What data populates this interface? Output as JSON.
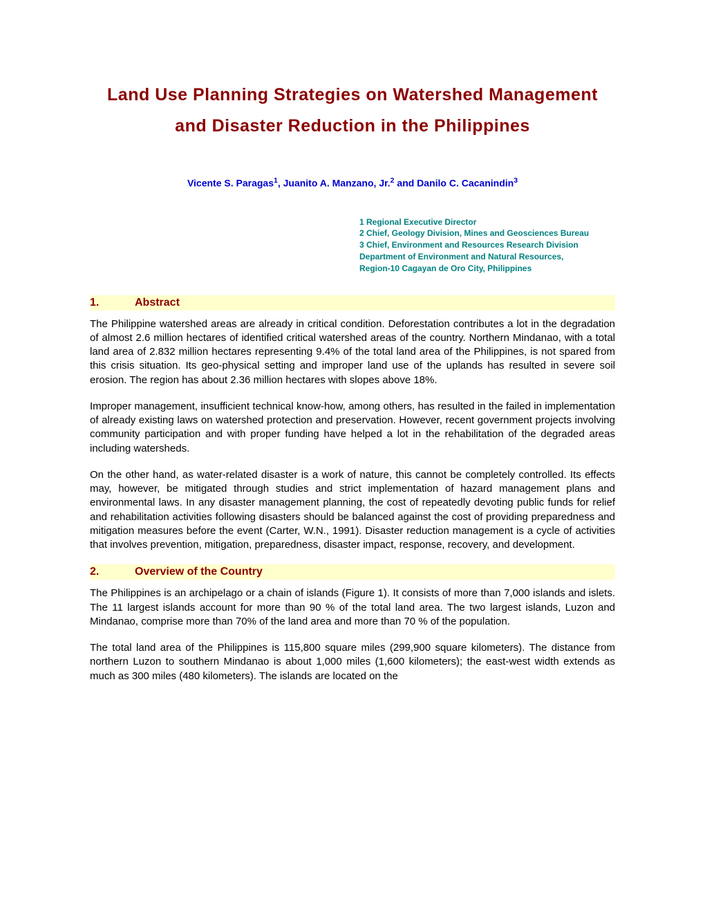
{
  "colors": {
    "title": "#8b0000",
    "author": "#0000cd",
    "affiliation": "#008080",
    "heading_bg": "#ffffcc",
    "heading_text": "#8b0000",
    "body_text": "#000000",
    "page_bg": "#ffffff"
  },
  "typography": {
    "title_fontsize": 25,
    "author_fontsize": 14,
    "affiliation_fontsize": 12,
    "heading_fontsize": 16,
    "body_fontsize": 15,
    "font_family": "Arial"
  },
  "title": "Land Use Planning Strategies on Watershed Management and Disaster Reduction in the Philippines",
  "authors_html": "Vicente S. Paragas<sup>1</sup>, Juanito A. Manzano, Jr.<sup>2</sup> and Danilo C. Cacanindin<sup>3</sup>",
  "affiliations": [
    "1    Regional Executive Director",
    "2    Chief, Geology Division, Mines and Geosciences Bureau",
    "3    Chief, Environment and Resources Research Division",
    "Department of Environment and Natural Resources, Region-10 Cagayan de Oro City, Philippines"
  ],
  "sections": [
    {
      "num": "1.",
      "label": "Abstract",
      "paragraphs": [
        "The Philippine watershed areas are already in critical condition. Deforestation contributes a lot in the degradation of almost 2.6 million hectares of identified critical watershed areas of the country. Northern Mindanao, with a total land area of 2.832 million hectares representing 9.4% of the total land area of the Philippines, is not spared from this crisis situation. Its geo-physical setting and improper land use of the uplands has resulted in severe soil erosion. The region has about 2.36 million hectares with slopes above 18%.",
        "Improper management, insufficient technical know-how, among others, has resulted in the failed in implementation of already existing laws on watershed protection and preservation. However, recent government projects involving community participation and with proper funding have helped a lot in the rehabilitation of the degraded areas including watersheds.",
        "On the other hand, as water-related disaster is a work of nature, this cannot be completely controlled. Its effects may, however, be mitigated through studies and strict implementation of hazard management plans and environmental laws. In any disaster management planning, the cost of repeatedly devoting public funds for relief and rehabilitation activities following disasters should be balanced against the cost of providing preparedness and mitigation measures before the event (Carter, W.N., 1991). Disaster reduction management is a cycle of activities that involves prevention, mitigation, preparedness, disaster impact, response, recovery, and development."
      ]
    },
    {
      "num": "2.",
      "label": "Overview of the Country",
      "paragraphs": [
        "The Philippines is an archipelago or a chain of islands (Figure 1). It consists of more than 7,000 islands and islets. The 11 largest islands account for more than 90 % of the total land area. The two largest islands, Luzon and Mindanao, comprise more than 70% of the land area and more than 70 % of the population.",
        "The total land area of the Philippines is 115,800 square miles (299,900 square kilometers). The distance from northern Luzon to southern Mindanao is about 1,000 miles (1,600 kilometers); the east-west width extends as much as 300 miles (480 kilometers). The islands are located on the"
      ]
    }
  ]
}
